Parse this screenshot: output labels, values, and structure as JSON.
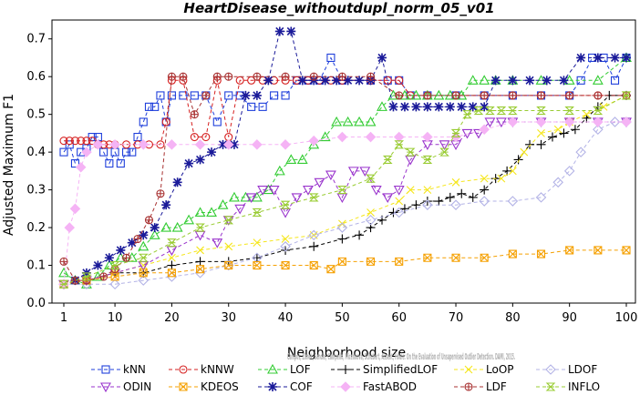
{
  "chart_data": {
    "type": "line",
    "title": "HeartDisease_withoutdupl_norm_05_v01",
    "xlabel": "Neighborhood size",
    "ylabel": "Adjusted Maximum F1",
    "xlim": [
      0,
      100
    ],
    "ylim": [
      0,
      0.75
    ],
    "xticks": [
      1,
      10,
      20,
      30,
      40,
      50,
      60,
      70,
      80,
      90,
      100
    ],
    "yticks": [
      0.0,
      0.1,
      0.2,
      0.3,
      0.4,
      0.5,
      0.6,
      0.7
    ],
    "watermark": "Campos, Zimek, Sander, Campello, Micenkova, Schubert, Assent, Houle: On the Evaluation of Unsupervised Outlier Detection. DAMI, 2015.",
    "legend_position": "bottom",
    "series": [
      {
        "name": "kNN",
        "color": "#1f3fdb",
        "marker": "square",
        "x": [
          1,
          2,
          3,
          4,
          5,
          6,
          7,
          8,
          9,
          10,
          11,
          12,
          13,
          14,
          15,
          16,
          17,
          18,
          19,
          20,
          22,
          24,
          26,
          28,
          30,
          32,
          34,
          36,
          38,
          40,
          42,
          44,
          46,
          48,
          50,
          55,
          58,
          60,
          62,
          65,
          70,
          75,
          80,
          85,
          90,
          92,
          94,
          96,
          98,
          100
        ],
        "y": [
          0.4,
          0.42,
          0.37,
          0.4,
          0.41,
          0.44,
          0.44,
          0.4,
          0.37,
          0.4,
          0.37,
          0.4,
          0.4,
          0.44,
          0.48,
          0.52,
          0.52,
          0.55,
          0.48,
          0.55,
          0.55,
          0.55,
          0.55,
          0.48,
          0.55,
          0.55,
          0.52,
          0.52,
          0.55,
          0.55,
          0.59,
          0.59,
          0.59,
          0.65,
          0.59,
          0.59,
          0.59,
          0.59,
          0.55,
          0.55,
          0.55,
          0.55,
          0.55,
          0.55,
          0.55,
          0.59,
          0.65,
          0.65,
          0.59,
          0.65
        ]
      },
      {
        "name": "kNNW",
        "color": "#d62020",
        "marker": "circle",
        "x": [
          1,
          2,
          3,
          4,
          5,
          6,
          7,
          8,
          9,
          10,
          12,
          14,
          16,
          18,
          19,
          20,
          22,
          24,
          26,
          28,
          30,
          32,
          34,
          36,
          38,
          40,
          42,
          44,
          46,
          48,
          50,
          55,
          58,
          60,
          62,
          65,
          70,
          75,
          80,
          85,
          90,
          95,
          100
        ],
        "y": [
          0.43,
          0.43,
          0.43,
          0.43,
          0.43,
          0.43,
          0.42,
          0.42,
          0.42,
          0.42,
          0.42,
          0.42,
          0.42,
          0.42,
          0.48,
          0.59,
          0.59,
          0.44,
          0.44,
          0.59,
          0.44,
          0.59,
          0.59,
          0.59,
          0.59,
          0.59,
          0.59,
          0.59,
          0.59,
          0.59,
          0.59,
          0.59,
          0.59,
          0.59,
          0.55,
          0.55,
          0.55,
          0.55,
          0.55,
          0.55,
          0.55,
          0.55,
          0.55
        ]
      },
      {
        "name": "LOF",
        "color": "#33cc33",
        "marker": "triangle-up",
        "x": [
          1,
          3,
          5,
          7,
          9,
          11,
          13,
          15,
          17,
          19,
          21,
          23,
          25,
          27,
          29,
          31,
          33,
          35,
          37,
          39,
          41,
          43,
          45,
          47,
          49,
          51,
          53,
          55,
          57,
          59,
          61,
          63,
          65,
          67,
          69,
          71,
          73,
          75,
          77,
          80,
          85,
          90,
          95,
          100
        ],
        "y": [
          0.08,
          0.06,
          0.05,
          0.07,
          0.1,
          0.12,
          0.12,
          0.15,
          0.18,
          0.2,
          0.2,
          0.22,
          0.24,
          0.24,
          0.26,
          0.28,
          0.28,
          0.28,
          0.3,
          0.35,
          0.38,
          0.38,
          0.42,
          0.44,
          0.48,
          0.48,
          0.48,
          0.48,
          0.52,
          0.55,
          0.55,
          0.55,
          0.55,
          0.55,
          0.55,
          0.55,
          0.59,
          0.59,
          0.59,
          0.59,
          0.59,
          0.59,
          0.59,
          0.65
        ]
      },
      {
        "name": "SimplifiedLOF",
        "color": "#000000",
        "marker": "plus",
        "x": [
          1,
          5,
          10,
          15,
          20,
          25,
          30,
          35,
          40,
          45,
          50,
          53,
          55,
          57,
          59,
          61,
          63,
          65,
          67,
          69,
          71,
          73,
          75,
          77,
          79,
          81,
          83,
          85,
          87,
          89,
          91,
          93,
          95,
          97,
          100
        ],
        "y": [
          0.05,
          0.06,
          0.08,
          0.08,
          0.1,
          0.11,
          0.11,
          0.12,
          0.14,
          0.15,
          0.17,
          0.18,
          0.2,
          0.22,
          0.24,
          0.25,
          0.26,
          0.27,
          0.27,
          0.28,
          0.29,
          0.28,
          0.3,
          0.33,
          0.35,
          0.38,
          0.42,
          0.42,
          0.44,
          0.45,
          0.46,
          0.49,
          0.52,
          0.55,
          0.55
        ]
      },
      {
        "name": "LoOP",
        "color": "#f5e61a",
        "marker": "cross",
        "x": [
          1,
          5,
          10,
          15,
          20,
          25,
          30,
          35,
          40,
          45,
          50,
          55,
          60,
          62,
          65,
          70,
          75,
          78,
          80,
          82,
          85,
          88,
          90,
          93,
          96,
          100
        ],
        "y": [
          0.05,
          0.06,
          0.08,
          0.1,
          0.12,
          0.14,
          0.15,
          0.16,
          0.17,
          0.18,
          0.21,
          0.24,
          0.27,
          0.3,
          0.3,
          0.32,
          0.33,
          0.33,
          0.35,
          0.4,
          0.45,
          0.46,
          0.48,
          0.5,
          0.52,
          0.55
        ]
      },
      {
        "name": "LDOF",
        "color": "#b3b3e6",
        "marker": "diamond",
        "x": [
          1,
          5,
          10,
          15,
          20,
          25,
          30,
          35,
          40,
          45,
          50,
          55,
          60,
          65,
          70,
          75,
          80,
          85,
          88,
          90,
          92,
          95,
          98,
          100
        ],
        "y": [
          0.05,
          0.05,
          0.05,
          0.06,
          0.07,
          0.08,
          0.1,
          0.12,
          0.15,
          0.18,
          0.2,
          0.22,
          0.24,
          0.26,
          0.26,
          0.27,
          0.27,
          0.28,
          0.32,
          0.35,
          0.4,
          0.46,
          0.48,
          0.48
        ]
      },
      {
        "name": "ODIN",
        "color": "#9933cc",
        "marker": "triangle-down",
        "x": [
          1,
          5,
          10,
          15,
          20,
          25,
          28,
          30,
          32,
          34,
          36,
          38,
          40,
          42,
          44,
          46,
          48,
          50,
          52,
          54,
          56,
          58,
          60,
          62,
          65,
          68,
          70,
          72,
          74,
          76,
          78,
          80,
          85,
          90,
          95,
          100
        ],
        "y": [
          0.05,
          0.06,
          0.08,
          0.1,
          0.14,
          0.18,
          0.16,
          0.22,
          0.25,
          0.28,
          0.3,
          0.3,
          0.24,
          0.28,
          0.3,
          0.32,
          0.34,
          0.28,
          0.35,
          0.35,
          0.3,
          0.28,
          0.3,
          0.38,
          0.42,
          0.42,
          0.42,
          0.45,
          0.45,
          0.48,
          0.48,
          0.48,
          0.48,
          0.48,
          0.48,
          0.48
        ]
      },
      {
        "name": "KDEOS",
        "color": "#f5a000",
        "marker": "square-x",
        "x": [
          1,
          5,
          10,
          15,
          20,
          25,
          30,
          35,
          40,
          45,
          48,
          50,
          55,
          60,
          65,
          70,
          75,
          80,
          85,
          90,
          95,
          100
        ],
        "y": [
          0.05,
          0.06,
          0.07,
          0.08,
          0.08,
          0.09,
          0.1,
          0.1,
          0.1,
          0.1,
          0.09,
          0.11,
          0.11,
          0.11,
          0.12,
          0.12,
          0.12,
          0.13,
          0.13,
          0.14,
          0.14,
          0.14
        ]
      },
      {
        "name": "COF",
        "color": "#1a1a99",
        "marker": "asterisk",
        "x": [
          1,
          3,
          5,
          7,
          9,
          11,
          13,
          15,
          17,
          19,
          21,
          23,
          25,
          27,
          29,
          31,
          33,
          35,
          37,
          39,
          41,
          43,
          45,
          47,
          49,
          51,
          53,
          55,
          57,
          59,
          61,
          63,
          65,
          67,
          69,
          71,
          73,
          75,
          77,
          80,
          83,
          86,
          89,
          92,
          95,
          98,
          100
        ],
        "y": [
          0.05,
          0.06,
          0.08,
          0.1,
          0.12,
          0.14,
          0.16,
          0.18,
          0.2,
          0.26,
          0.32,
          0.37,
          0.38,
          0.4,
          0.42,
          0.42,
          0.55,
          0.55,
          0.59,
          0.72,
          0.72,
          0.59,
          0.59,
          0.59,
          0.59,
          0.59,
          0.59,
          0.59,
          0.65,
          0.52,
          0.52,
          0.52,
          0.52,
          0.52,
          0.52,
          0.52,
          0.52,
          0.52,
          0.59,
          0.59,
          0.59,
          0.59,
          0.59,
          0.65,
          0.65,
          0.65,
          0.65
        ]
      },
      {
        "name": "FastABOD",
        "color": "#f5b3f5",
        "marker": "diamond-filled",
        "x": [
          1,
          2,
          3,
          4,
          5,
          7,
          10,
          15,
          20,
          25,
          30,
          35,
          40,
          45,
          50,
          55,
          60,
          65,
          70,
          75,
          80,
          85,
          90,
          95,
          100
        ],
        "y": [
          0.05,
          0.2,
          0.25,
          0.36,
          0.4,
          0.42,
          0.42,
          0.42,
          0.42,
          0.42,
          0.42,
          0.42,
          0.42,
          0.43,
          0.44,
          0.44,
          0.44,
          0.44,
          0.44,
          0.46,
          0.48,
          0.48,
          0.48,
          0.48,
          0.48
        ]
      },
      {
        "name": "LDF",
        "color": "#a83232",
        "marker": "circle-plus",
        "x": [
          1,
          3,
          5,
          8,
          10,
          12,
          14,
          16,
          18,
          20,
          22,
          24,
          26,
          28,
          30,
          35,
          40,
          45,
          50,
          55,
          60,
          65,
          70,
          75,
          80,
          85,
          90,
          95,
          100
        ],
        "y": [
          0.11,
          0.06,
          0.06,
          0.07,
          0.09,
          0.12,
          0.17,
          0.22,
          0.29,
          0.6,
          0.6,
          0.5,
          0.55,
          0.6,
          0.6,
          0.6,
          0.6,
          0.6,
          0.6,
          0.6,
          0.55,
          0.55,
          0.55,
          0.55,
          0.55,
          0.55,
          0.55,
          0.55,
          0.55
        ]
      },
      {
        "name": "INFLO",
        "color": "#99cc33",
        "marker": "hourglass",
        "x": [
          1,
          5,
          10,
          15,
          20,
          25,
          30,
          35,
          40,
          45,
          50,
          55,
          58,
          60,
          62,
          65,
          68,
          70,
          72,
          74,
          76,
          78,
          80,
          85,
          90,
          95,
          100
        ],
        "y": [
          0.05,
          0.07,
          0.1,
          0.12,
          0.16,
          0.2,
          0.22,
          0.24,
          0.26,
          0.28,
          0.3,
          0.33,
          0.38,
          0.42,
          0.4,
          0.38,
          0.4,
          0.45,
          0.5,
          0.51,
          0.51,
          0.51,
          0.51,
          0.51,
          0.51,
          0.51,
          0.55
        ]
      }
    ]
  }
}
